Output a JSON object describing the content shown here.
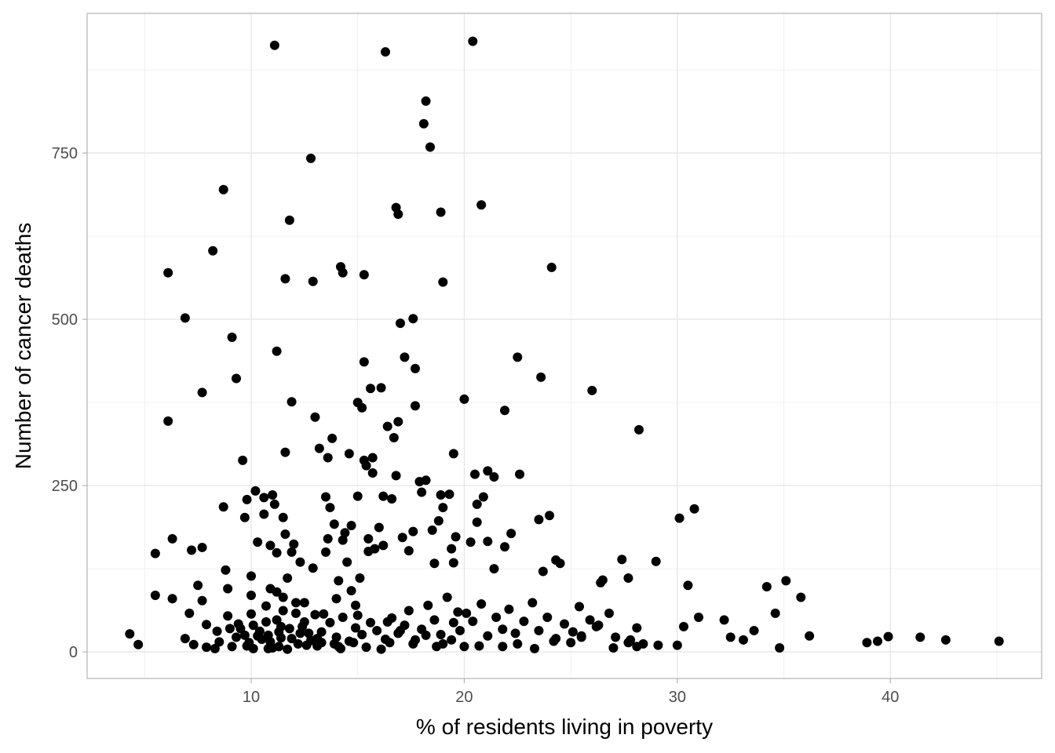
{
  "chart_data": {
    "type": "scatter",
    "xlabel": "% of residents living in poverty",
    "ylabel": "Number of cancer deaths",
    "xlim": [
      2.3,
      47.1
    ],
    "ylim": [
      -40,
      960
    ],
    "x_ticks": [
      10,
      20,
      30,
      40
    ],
    "x_tick_labels": [
      "10",
      "20",
      "30",
      "40"
    ],
    "y_ticks": [
      0,
      250,
      500,
      750
    ],
    "y_tick_labels": [
      "0",
      "250",
      "500",
      "750"
    ],
    "grid": true,
    "legend": "none",
    "point_color": "#000000",
    "points": [
      [
        4.3,
        27
      ],
      [
        4.7,
        11
      ],
      [
        5.5,
        148
      ],
      [
        5.5,
        85
      ],
      [
        6.1,
        570
      ],
      [
        6.1,
        347
      ],
      [
        6.3,
        170
      ],
      [
        6.3,
        80
      ],
      [
        6.9,
        502
      ],
      [
        6.9,
        20
      ],
      [
        7.1,
        58
      ],
      [
        7.2,
        153
      ],
      [
        7.3,
        11
      ],
      [
        7.5,
        100
      ],
      [
        7.7,
        390
      ],
      [
        7.7,
        157
      ],
      [
        7.7,
        77
      ],
      [
        7.9,
        7
      ],
      [
        7.9,
        41
      ],
      [
        8.2,
        603
      ],
      [
        8.3,
        5
      ],
      [
        8.4,
        31
      ],
      [
        8.5,
        15
      ],
      [
        8.7,
        695
      ],
      [
        8.7,
        218
      ],
      [
        8.8,
        123
      ],
      [
        8.9,
        54
      ],
      [
        8.9,
        95
      ],
      [
        9.0,
        35
      ],
      [
        9.1,
        473
      ],
      [
        9.1,
        8
      ],
      [
        9.3,
        411
      ],
      [
        9.3,
        22
      ],
      [
        9.4,
        42
      ],
      [
        9.5,
        35
      ],
      [
        9.6,
        288
      ],
      [
        9.7,
        202
      ],
      [
        9.7,
        25
      ],
      [
        9.8,
        229
      ],
      [
        9.8,
        9
      ],
      [
        9.9,
        14
      ],
      [
        10.0,
        114
      ],
      [
        10.0,
        57
      ],
      [
        10.0,
        85
      ],
      [
        10.1,
        5
      ],
      [
        10.1,
        40
      ],
      [
        10.2,
        242
      ],
      [
        10.3,
        165
      ],
      [
        10.3,
        24
      ],
      [
        10.4,
        31
      ],
      [
        10.5,
        19
      ],
      [
        10.6,
        232
      ],
      [
        10.6,
        207
      ],
      [
        10.7,
        69
      ],
      [
        10.8,
        25
      ],
      [
        10.8,
        5
      ],
      [
        10.9,
        160
      ],
      [
        10.9,
        95
      ],
      [
        11.0,
        236
      ],
      [
        11.0,
        6
      ],
      [
        11.1,
        912
      ],
      [
        11.1,
        222
      ],
      [
        11.2,
        452
      ],
      [
        11.2,
        149
      ],
      [
        11.2,
        90
      ],
      [
        11.3,
        30
      ],
      [
        11.4,
        21
      ],
      [
        11.5,
        202
      ],
      [
        11.5,
        82
      ],
      [
        11.6,
        561
      ],
      [
        11.6,
        300
      ],
      [
        11.6,
        177
      ],
      [
        11.7,
        111
      ],
      [
        11.8,
        649
      ],
      [
        11.8,
        35
      ],
      [
        11.9,
        150
      ],
      [
        11.9,
        376
      ],
      [
        12.0,
        162
      ],
      [
        12.1,
        74
      ],
      [
        12.1,
        58
      ],
      [
        12.3,
        135
      ],
      [
        12.4,
        38
      ],
      [
        12.5,
        74
      ],
      [
        12.6,
        10
      ],
      [
        12.8,
        742
      ],
      [
        12.9,
        557
      ],
      [
        12.9,
        126
      ],
      [
        13.0,
        353
      ],
      [
        13.0,
        56
      ],
      [
        13.1,
        20
      ],
      [
        13.2,
        306
      ],
      [
        13.3,
        14
      ],
      [
        13.4,
        57
      ],
      [
        13.5,
        233
      ],
      [
        13.5,
        150
      ],
      [
        13.6,
        292
      ],
      [
        13.6,
        170
      ],
      [
        13.7,
        217
      ],
      [
        13.8,
        321
      ],
      [
        13.9,
        192
      ],
      [
        14.0,
        80
      ],
      [
        14.1,
        8
      ],
      [
        14.1,
        107
      ],
      [
        14.2,
        579
      ],
      [
        14.3,
        570
      ],
      [
        14.3,
        168
      ],
      [
        14.4,
        179
      ],
      [
        14.5,
        135
      ],
      [
        14.6,
        298
      ],
      [
        14.7,
        92
      ],
      [
        14.7,
        190
      ],
      [
        14.9,
        70
      ],
      [
        15.0,
        375
      ],
      [
        15.0,
        234
      ],
      [
        15.1,
        111
      ],
      [
        15.2,
        367
      ],
      [
        15.3,
        567
      ],
      [
        15.3,
        436
      ],
      [
        15.3,
        288
      ],
      [
        15.4,
        280
      ],
      [
        15.5,
        151
      ],
      [
        15.5,
        170
      ],
      [
        15.6,
        396
      ],
      [
        15.7,
        269
      ],
      [
        15.7,
        292
      ],
      [
        15.8,
        155
      ],
      [
        16.0,
        187
      ],
      [
        16.1,
        397
      ],
      [
        16.2,
        234
      ],
      [
        16.2,
        160
      ],
      [
        16.3,
        902
      ],
      [
        16.4,
        339
      ],
      [
        16.5,
        14
      ],
      [
        16.6,
        230
      ],
      [
        16.7,
        322
      ],
      [
        16.8,
        668
      ],
      [
        16.8,
        265
      ],
      [
        16.9,
        658
      ],
      [
        16.9,
        346
      ],
      [
        17.0,
        494
      ],
      [
        17.1,
        172
      ],
      [
        17.2,
        443
      ],
      [
        17.4,
        152
      ],
      [
        17.6,
        181
      ],
      [
        17.6,
        501
      ],
      [
        17.7,
        426
      ],
      [
        17.7,
        370
      ],
      [
        17.9,
        256
      ],
      [
        18.0,
        240
      ],
      [
        18.1,
        794
      ],
      [
        18.2,
        828
      ],
      [
        18.2,
        258
      ],
      [
        18.4,
        759
      ],
      [
        18.5,
        183
      ],
      [
        18.6,
        133
      ],
      [
        18.8,
        197
      ],
      [
        18.9,
        661
      ],
      [
        18.9,
        236
      ],
      [
        19.0,
        556
      ],
      [
        19.0,
        217
      ],
      [
        19.3,
        237
      ],
      [
        19.4,
        155
      ],
      [
        19.5,
        298
      ],
      [
        19.5,
        134
      ],
      [
        19.6,
        173
      ],
      [
        19.7,
        60
      ],
      [
        20.0,
        380
      ],
      [
        20.3,
        165
      ],
      [
        20.4,
        918
      ],
      [
        20.5,
        267
      ],
      [
        20.6,
        195
      ],
      [
        20.6,
        222
      ],
      [
        20.8,
        672
      ],
      [
        20.9,
        233
      ],
      [
        21.1,
        272
      ],
      [
        21.1,
        166
      ],
      [
        21.4,
        263
      ],
      [
        21.4,
        125
      ],
      [
        21.9,
        363
      ],
      [
        21.9,
        158
      ],
      [
        22.2,
        178
      ],
      [
        22.5,
        443
      ],
      [
        22.6,
        267
      ],
      [
        23.5,
        199
      ],
      [
        23.6,
        413
      ],
      [
        23.7,
        121
      ],
      [
        24.0,
        205
      ],
      [
        24.1,
        578
      ],
      [
        24.3,
        138
      ],
      [
        24.5,
        133
      ],
      [
        25.4,
        68
      ],
      [
        26.0,
        393
      ],
      [
        26.4,
        104
      ],
      [
        26.5,
        108
      ],
      [
        27.4,
        139
      ],
      [
        27.7,
        111
      ],
      [
        28.2,
        334
      ],
      [
        29.0,
        136
      ],
      [
        30.1,
        201
      ],
      [
        30.5,
        100
      ],
      [
        30.8,
        215
      ],
      [
        34.2,
        98
      ],
      [
        35.1,
        107
      ],
      [
        35.8,
        82
      ],
      [
        36.2,
        24
      ],
      [
        38.9,
        14
      ],
      [
        39.4,
        16
      ],
      [
        39.9,
        23
      ],
      [
        41.4,
        22
      ],
      [
        42.6,
        18
      ],
      [
        45.1,
        16
      ],
      [
        11.2,
        48
      ],
      [
        11.4,
        38
      ],
      [
        11.5,
        62
      ],
      [
        11.9,
        20
      ],
      [
        12.2,
        12
      ],
      [
        12.3,
        28
      ],
      [
        12.5,
        45
      ],
      [
        12.8,
        17
      ],
      [
        13.3,
        30
      ],
      [
        13.7,
        44
      ],
      [
        14.0,
        22
      ],
      [
        14.3,
        52
      ],
      [
        14.6,
        16
      ],
      [
        14.9,
        36
      ],
      [
        15.2,
        26
      ],
      [
        15.6,
        44
      ],
      [
        15.9,
        32
      ],
      [
        16.3,
        19
      ],
      [
        16.6,
        51
      ],
      [
        16.9,
        28
      ],
      [
        17.2,
        40
      ],
      [
        17.4,
        62
      ],
      [
        17.7,
        18
      ],
      [
        18.0,
        34
      ],
      [
        18.3,
        70
      ],
      [
        18.6,
        48
      ],
      [
        18.9,
        26
      ],
      [
        19.2,
        82
      ],
      [
        19.5,
        44
      ],
      [
        19.8,
        32
      ],
      [
        20.1,
        58
      ],
      [
        20.4,
        46
      ],
      [
        20.8,
        72
      ],
      [
        21.1,
        24
      ],
      [
        21.5,
        52
      ],
      [
        21.8,
        34
      ],
      [
        22.1,
        64
      ],
      [
        22.4,
        28
      ],
      [
        22.8,
        46
      ],
      [
        23.2,
        74
      ],
      [
        23.5,
        32
      ],
      [
        23.9,
        52
      ],
      [
        24.3,
        20
      ],
      [
        24.7,
        42
      ],
      [
        25.1,
        30
      ],
      [
        25.5,
        24
      ],
      [
        25.9,
        48
      ],
      [
        26.3,
        40
      ],
      [
        26.8,
        58
      ],
      [
        27.1,
        22
      ],
      [
        27.7,
        14
      ],
      [
        28.1,
        36
      ],
      [
        28.4,
        12
      ],
      [
        29.1,
        10
      ],
      [
        30.0,
        10
      ],
      [
        30.3,
        38
      ],
      [
        31.0,
        52
      ],
      [
        32.2,
        48
      ],
      [
        32.5,
        22
      ],
      [
        33.1,
        18
      ],
      [
        33.6,
        32
      ],
      [
        34.6,
        58
      ],
      [
        34.8,
        6
      ],
      [
        10.7,
        45
      ],
      [
        10.9,
        15
      ],
      [
        11.3,
        8
      ],
      [
        11.7,
        4
      ],
      [
        12.7,
        28
      ],
      [
        13.1,
        9
      ],
      [
        13.9,
        12
      ],
      [
        14.2,
        5
      ],
      [
        14.8,
        14
      ],
      [
        15.0,
        55
      ],
      [
        15.4,
        7
      ],
      [
        16.1,
        4
      ],
      [
        16.4,
        45
      ],
      [
        17.0,
        32
      ],
      [
        17.6,
        12
      ],
      [
        18.2,
        25
      ],
      [
        18.7,
        8
      ],
      [
        19.0,
        12
      ],
      [
        19.4,
        18
      ],
      [
        20.0,
        8
      ],
      [
        20.7,
        9
      ],
      [
        21.8,
        8
      ],
      [
        22.5,
        12
      ],
      [
        23.3,
        5
      ],
      [
        24.2,
        16
      ],
      [
        25.0,
        14
      ],
      [
        25.5,
        22
      ],
      [
        26.2,
        38
      ],
      [
        27.0,
        6
      ],
      [
        27.8,
        18
      ],
      [
        28.1,
        8
      ]
    ]
  }
}
